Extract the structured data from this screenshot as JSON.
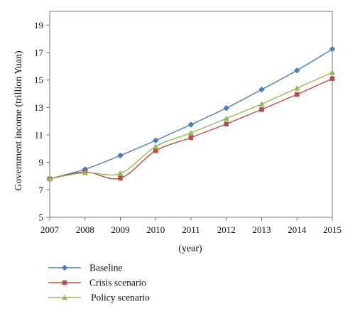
{
  "chart_data": {
    "type": "line",
    "title": "",
    "xlabel": "(year)",
    "ylabel": "Government income (trillion Yuan)",
    "x": [
      2007,
      2008,
      2009,
      2010,
      2011,
      2012,
      2013,
      2014,
      2015
    ],
    "xlim": [
      2007,
      2015
    ],
    "ylim": [
      5,
      20
    ],
    "yticks": [
      5,
      7,
      9,
      11,
      13,
      15,
      17,
      19
    ],
    "grid": false,
    "legend_position": "bottom-left",
    "series": [
      {
        "name": "Baseline",
        "color": "#4a7ebb",
        "marker": "diamond",
        "values": [
          7.8,
          8.5,
          9.5,
          10.6,
          11.75,
          12.95,
          14.3,
          15.7,
          17.25
        ]
      },
      {
        "name": "Crisis scenario",
        "color": "#be4b48",
        "marker": "square",
        "values": [
          7.8,
          8.3,
          7.85,
          9.85,
          10.8,
          11.8,
          12.85,
          13.95,
          15.1
        ]
      },
      {
        "name": "Policy scenario",
        "color": "#98b954",
        "marker": "triangle",
        "values": [
          7.8,
          8.25,
          8.2,
          10.15,
          11.15,
          12.2,
          13.25,
          14.4,
          15.55
        ]
      }
    ]
  }
}
